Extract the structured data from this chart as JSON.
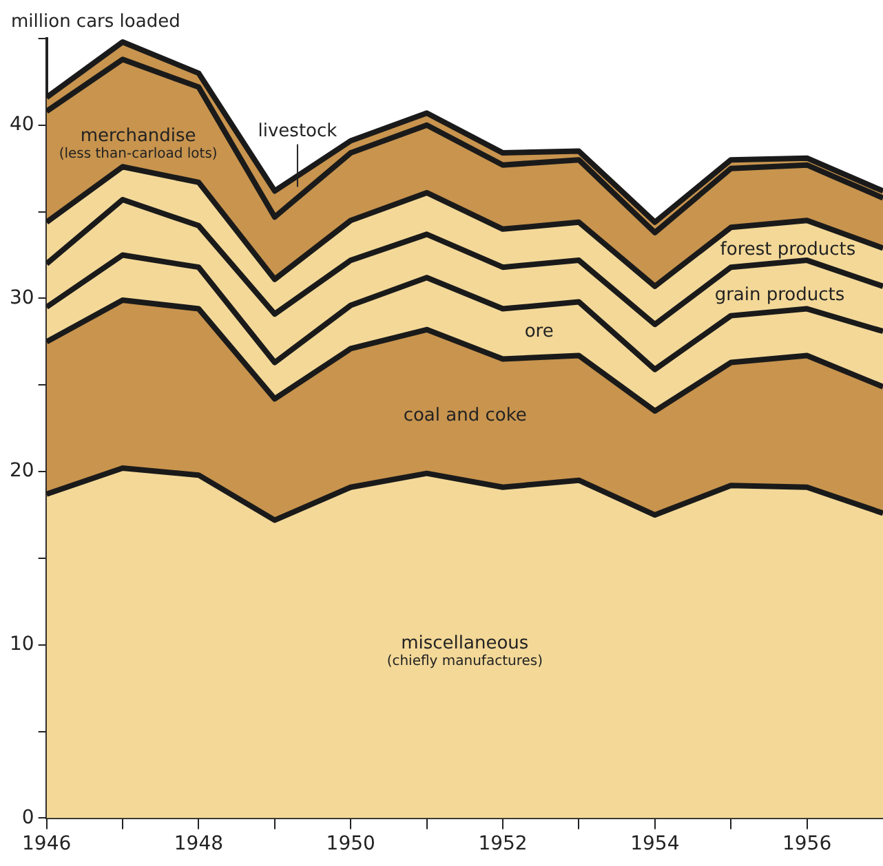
{
  "chart_data": {
    "type": "area",
    "ylabel": "million cars loaded",
    "stacked": true,
    "marker": "none",
    "x": [
      1946,
      1947,
      1948,
      1949,
      1950,
      1951,
      1952,
      1953,
      1954,
      1955,
      1956,
      1957
    ],
    "xlim": [
      1946,
      1957
    ],
    "xticks": [
      1946,
      {
        "value": 1947,
        "label": null
      },
      1948,
      {
        "value": 1949,
        "label": null
      },
      1950,
      {
        "value": 1951,
        "label": null
      },
      1952,
      {
        "value": 1953,
        "label": null
      },
      1954,
      {
        "value": 1955,
        "label": null
      },
      1956
    ],
    "ylim": [
      0,
      45
    ],
    "yticks": [
      0,
      {
        "value": 5,
        "label": null
      },
      10,
      {
        "value": 15,
        "label": null
      },
      20,
      {
        "value": 25,
        "label": null
      },
      30,
      {
        "value": 35,
        "label": null
      },
      40,
      {
        "value": 45,
        "label": null
      }
    ],
    "series": [
      {
        "name": "miscellaneous\n(chiefly manufactures)",
        "color": "#f3d898",
        "values": [
          18.7,
          20.2,
          19.8,
          17.2,
          19.1,
          19.9,
          19.1,
          19.5,
          17.5,
          19.2,
          19.1,
          17.6
        ]
      },
      {
        "name": "coal and coke",
        "color": "#c8944e",
        "values": [
          8.8,
          9.7,
          9.6,
          7.0,
          8.0,
          8.3,
          7.4,
          7.2,
          6.0,
          7.1,
          7.6,
          7.3
        ]
      },
      {
        "name": "ore",
        "color": "#f3d898",
        "values": [
          2.0,
          2.6,
          2.4,
          2.1,
          2.5,
          3.0,
          2.9,
          3.1,
          2.4,
          2.7,
          2.7,
          3.2
        ]
      },
      {
        "name": "grain products",
        "color": "#f3d898",
        "values": [
          2.5,
          3.2,
          2.4,
          2.8,
          2.6,
          2.5,
          2.4,
          2.4,
          2.6,
          2.8,
          2.8,
          2.6
        ]
      },
      {
        "name": "forest products",
        "color": "#f3d898",
        "values": [
          2.4,
          1.9,
          2.5,
          2.0,
          2.3,
          2.4,
          2.2,
          2.2,
          2.2,
          2.3,
          2.3,
          2.2
        ]
      },
      {
        "name": "merchandise\n(less than-carload lots)",
        "color": "#c8944e",
        "values": [
          6.4,
          6.2,
          5.5,
          3.6,
          3.9,
          3.9,
          3.7,
          3.6,
          3.1,
          3.4,
          3.2,
          2.9
        ]
      },
      {
        "name": "livestock",
        "color": "#c8944e",
        "values": [
          0.8,
          1.0,
          0.8,
          1.5,
          0.7,
          0.7,
          0.7,
          0.5,
          0.6,
          0.5,
          0.4,
          0.4
        ]
      }
    ]
  }
}
